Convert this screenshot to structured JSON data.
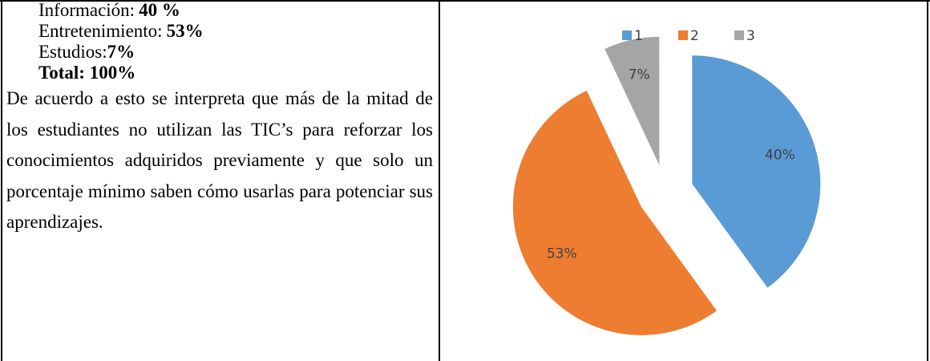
{
  "summary": {
    "items": [
      {
        "label": "Información:",
        "value": "40 %"
      },
      {
        "label": "Entretenimiento:",
        "value": "53%"
      },
      {
        "label": "Estudios:",
        "value": "7%"
      }
    ],
    "total": "Total: 100%"
  },
  "paragraph": "De acuerdo a esto se interpreta que más de la mitad de los estudiantes no utilizan las TIC’s para reforzar los conocimientos adquiridos previamente y que solo un porcentaje mínimo saben cómo usarlas para potenciar sus aprendizajes.",
  "chart_data": {
    "type": "pie",
    "categories": [
      "1",
      "2",
      "3"
    ],
    "values": [
      40,
      53,
      7
    ],
    "value_labels": [
      "40%",
      "53%",
      "7%"
    ],
    "colors": [
      "#5b9bd5",
      "#ed7d31",
      "#a5a5a5"
    ],
    "legend": "top"
  }
}
